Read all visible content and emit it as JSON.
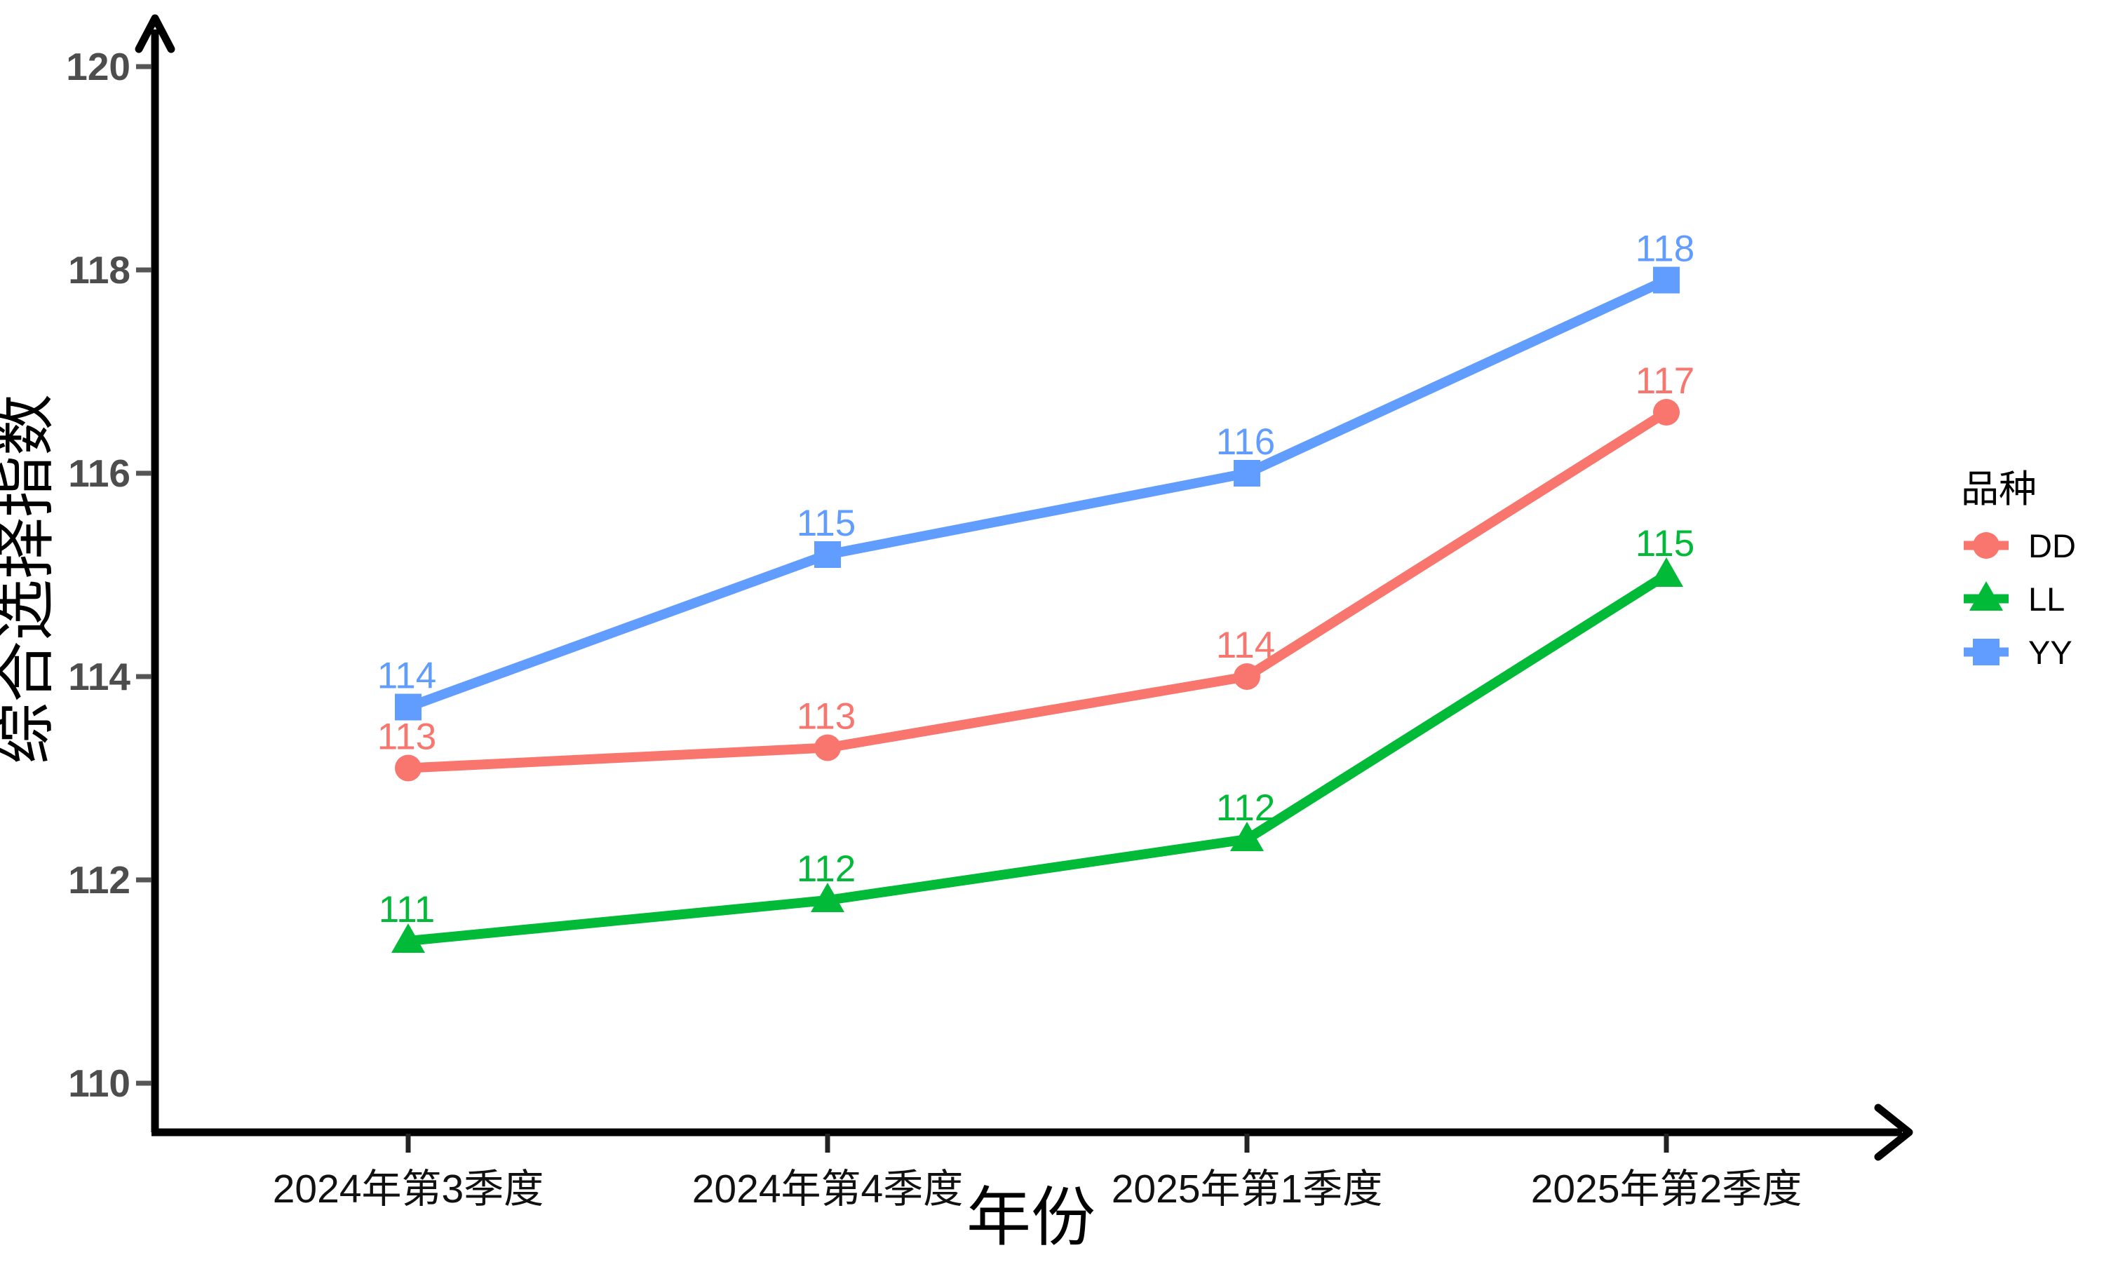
{
  "chart_data": {
    "type": "line",
    "title": "",
    "xlabel": "年份",
    "ylabel": "综合选择指数",
    "categories": [
      "2024年第3季度",
      "2024年第4季度",
      "2025年第1季度",
      "2025年第2季度"
    ],
    "y_ticks": [
      110,
      112,
      114,
      116,
      118,
      120
    ],
    "ylim": [
      109.5,
      120.5
    ],
    "grid": false,
    "legend": {
      "title": "品种",
      "position": "right"
    },
    "series": [
      {
        "name": "DD",
        "color": "#F8766D",
        "marker": "circle",
        "values": [
          113.1,
          113.3,
          114.0,
          116.6
        ],
        "labels": [
          "113",
          "113",
          "114",
          "117"
        ]
      },
      {
        "name": "LL",
        "color": "#00BA38",
        "marker": "triangle",
        "values": [
          111.4,
          111.8,
          112.4,
          115.0
        ],
        "labels": [
          "111",
          "112",
          "112",
          "115"
        ]
      },
      {
        "name": "YY",
        "color": "#619CFF",
        "marker": "square",
        "values": [
          113.7,
          115.2,
          116.0,
          117.9
        ],
        "labels": [
          "114",
          "115",
          "116",
          "118"
        ]
      }
    ],
    "axis_color": "#000000",
    "y_tick_label_color": "#4d4d4d",
    "x_tick_label_color": "#111111"
  }
}
